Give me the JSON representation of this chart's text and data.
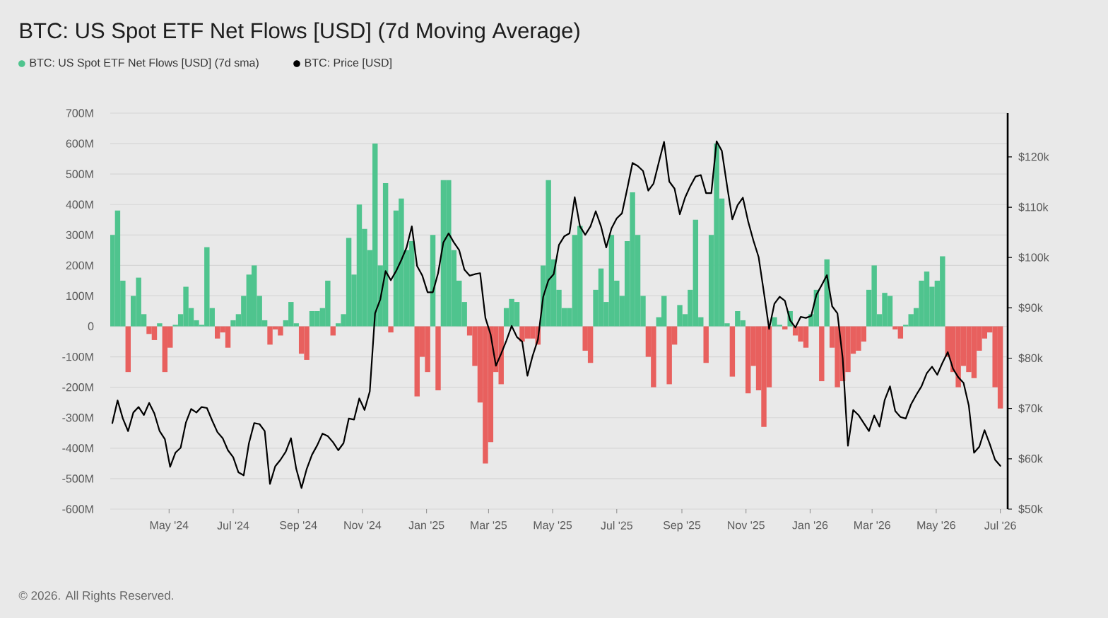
{
  "chart_data": {
    "type": "bar",
    "title": "BTC: US Spot ETF Net Flows [USD] (7d Moving Average)",
    "annotations": [
      "© 2026. All Rights Reserved."
    ],
    "legend": "top left",
    "grid": "y",
    "xlim": [
      "2024-03-06",
      "2026-07-08"
    ],
    "xticks": [
      {
        "value": "2024-05-01",
        "label": "May '24"
      },
      {
        "value": "2024-07-01",
        "label": "Jul '24"
      },
      {
        "value": "2024-09-01",
        "label": "Sep '24"
      },
      {
        "value": "2024-11-01",
        "label": "Nov '24"
      },
      {
        "value": "2025-01-01",
        "label": "Jan '25"
      },
      {
        "value": "2025-03-01",
        "label": "Mar '25"
      },
      {
        "value": "2025-05-01",
        "label": "May '25"
      },
      {
        "value": "2025-07-01",
        "label": "Jul '25"
      },
      {
        "value": "2025-09-01",
        "label": "Sep '25"
      },
      {
        "value": "2025-11-01",
        "label": "Nov '25"
      },
      {
        "value": "2026-01-01",
        "label": "Jan '26"
      },
      {
        "value": "2026-03-01",
        "label": "Mar '26"
      },
      {
        "value": "2026-05-01",
        "label": "May '26"
      },
      {
        "value": "2026-07-01",
        "label": "Jul '26"
      }
    ],
    "ylim": [
      -600000000,
      700000000
    ],
    "yticks": [
      {
        "value": -600000000,
        "label": "-600M"
      },
      {
        "value": -500000000,
        "label": "-500M"
      },
      {
        "value": -400000000,
        "label": "-400M"
      },
      {
        "value": -300000000,
        "label": "-300M"
      },
      {
        "value": -200000000,
        "label": "-200M"
      },
      {
        "value": -100000000,
        "label": "-100M"
      },
      0,
      {
        "value": 100000000,
        "label": "100M"
      },
      {
        "value": 200000000,
        "label": "200M"
      },
      {
        "value": 300000000,
        "label": "300M"
      },
      {
        "value": 400000000,
        "label": "400M"
      },
      {
        "value": 500000000,
        "label": "500M"
      },
      {
        "value": 600000000,
        "label": "600M"
      },
      {
        "value": 700000000,
        "label": "700M"
      }
    ],
    "y2lim": [
      50000,
      128700
    ],
    "y2ticks": [
      {
        "value": 50000,
        "label": "$50k"
      },
      {
        "value": 60000,
        "label": "$60k"
      },
      {
        "value": 70000,
        "label": "$70k"
      },
      {
        "value": 80000,
        "label": "$80k"
      },
      {
        "value": 90000,
        "label": "$90k"
      },
      {
        "value": 100000,
        "label": "$100k"
      },
      {
        "value": 110000,
        "label": "$110k"
      },
      {
        "value": 120000,
        "label": "$120k"
      }
    ],
    "x": [
      "2024-03-08",
      "2024-03-13",
      "2024-03-18",
      "2024-03-23",
      "2024-03-28",
      "2024-04-02",
      "2024-04-07",
      "2024-04-12",
      "2024-04-17",
      "2024-04-22",
      "2024-04-27",
      "2024-05-02",
      "2024-05-07",
      "2024-05-12",
      "2024-05-17",
      "2024-05-22",
      "2024-05-27",
      "2024-06-01",
      "2024-06-06",
      "2024-06-11",
      "2024-06-16",
      "2024-06-21",
      "2024-06-26",
      "2024-07-01",
      "2024-07-06",
      "2024-07-11",
      "2024-07-16",
      "2024-07-21",
      "2024-07-26",
      "2024-07-31",
      "2024-08-05",
      "2024-08-10",
      "2024-08-15",
      "2024-08-20",
      "2024-08-25",
      "2024-08-30",
      "2024-09-04",
      "2024-09-09",
      "2024-09-14",
      "2024-09-19",
      "2024-09-24",
      "2024-09-29",
      "2024-10-04",
      "2024-10-09",
      "2024-10-14",
      "2024-10-19",
      "2024-10-24",
      "2024-10-29",
      "2024-11-03",
      "2024-11-08",
      "2024-11-13",
      "2024-11-18",
      "2024-11-23",
      "2024-11-28",
      "2024-12-03",
      "2024-12-08",
      "2024-12-13",
      "2024-12-18",
      "2024-12-23",
      "2024-12-28",
      "2025-01-02",
      "2025-01-07",
      "2025-01-12",
      "2025-01-17",
      "2025-01-22",
      "2025-01-27",
      "2025-02-01",
      "2025-02-06",
      "2025-02-11",
      "2025-02-16",
      "2025-02-21",
      "2025-02-26",
      "2025-03-03",
      "2025-03-08",
      "2025-03-13",
      "2025-03-18",
      "2025-03-23",
      "2025-03-28",
      "2025-04-02",
      "2025-04-07",
      "2025-04-12",
      "2025-04-17",
      "2025-04-22",
      "2025-04-27",
      "2025-05-02",
      "2025-05-07",
      "2025-05-12",
      "2025-05-17",
      "2025-05-22",
      "2025-05-27",
      "2025-06-01",
      "2025-06-06",
      "2025-06-11",
      "2025-06-16",
      "2025-06-21",
      "2025-06-26",
      "2025-07-01",
      "2025-07-06",
      "2025-07-11",
      "2025-07-16",
      "2025-07-21",
      "2025-07-26",
      "2025-07-31",
      "2025-08-05",
      "2025-08-10",
      "2025-08-15",
      "2025-08-20",
      "2025-08-25",
      "2025-08-30",
      "2025-09-04",
      "2025-09-09",
      "2025-09-14",
      "2025-09-19",
      "2025-09-24",
      "2025-09-29",
      "2025-10-04",
      "2025-10-09",
      "2025-10-14",
      "2025-10-19",
      "2025-10-24",
      "2025-10-29",
      "2025-11-03",
      "2025-11-08",
      "2025-11-13",
      "2025-11-18",
      "2025-11-23",
      "2025-11-28",
      "2025-12-03",
      "2025-12-08",
      "2025-12-13",
      "2025-12-18",
      "2025-12-23",
      "2025-12-28",
      "2026-01-02",
      "2026-01-07",
      "2026-01-12",
      "2026-01-17",
      "2026-01-22",
      "2026-01-27",
      "2026-02-01",
      "2026-02-06",
      "2026-02-11",
      "2026-02-16",
      "2026-02-21",
      "2026-02-26",
      "2026-03-03",
      "2026-03-08",
      "2026-03-13",
      "2026-03-18",
      "2026-03-23",
      "2026-03-28",
      "2026-04-02",
      "2026-04-07",
      "2026-04-12",
      "2026-04-17",
      "2026-04-22",
      "2026-04-27",
      "2026-05-02",
      "2026-05-07",
      "2026-05-12",
      "2026-05-17",
      "2026-05-22",
      "2026-05-27",
      "2026-06-01",
      "2026-06-06",
      "2026-06-11",
      "2026-06-16",
      "2026-06-21",
      "2026-06-26",
      "2026-07-01"
    ],
    "series": [
      {
        "name": "BTC: US Spot ETF Net Flows [USD] (7d sma)",
        "values": [
          300000000,
          380000000,
          150000000,
          -150000000,
          100000000,
          160000000,
          40000000,
          -25000000,
          -45000000,
          10000000,
          -150000000,
          -70000000,
          5000000,
          40000000,
          130000000,
          60000000,
          20000000,
          5000000,
          260000000,
          60000000,
          -40000000,
          -20000000,
          -70000000,
          20000000,
          40000000,
          100000000,
          170000000,
          200000000,
          100000000,
          20000000,
          -60000000,
          -10000000,
          -30000000,
          20000000,
          80000000,
          10000000,
          -90000000,
          -110000000,
          50000000,
          50000000,
          60000000,
          150000000,
          -30000000,
          10000000,
          40000000,
          290000000,
          170000000,
          400000000,
          320000000,
          250000000,
          600000000,
          200000000,
          470000000,
          -20000000,
          380000000,
          420000000,
          250000000,
          280000000,
          -230000000,
          -100000000,
          -150000000,
          300000000,
          -210000000,
          480000000,
          480000000,
          250000000,
          150000000,
          80000000,
          -30000000,
          -130000000,
          -250000000,
          -450000000,
          -380000000,
          -150000000,
          -190000000,
          60000000,
          90000000,
          80000000,
          -50000000,
          -40000000,
          -40000000,
          -60000000,
          200000000,
          480000000,
          220000000,
          120000000,
          60000000,
          60000000,
          300000000,
          330000000,
          -80000000,
          -120000000,
          120000000,
          190000000,
          80000000,
          300000000,
          150000000,
          100000000,
          280000000,
          440000000,
          300000000,
          100000000,
          -100000000,
          -200000000,
          30000000,
          100000000,
          -190000000,
          -60000000,
          70000000,
          40000000,
          120000000,
          350000000,
          30000000,
          -120000000,
          300000000,
          600000000,
          420000000,
          10000000,
          -165000000,
          50000000,
          20000000,
          -220000000,
          -130000000,
          -210000000,
          -330000000,
          -200000000,
          30000000,
          5000000,
          -10000000,
          50000000,
          -30000000,
          -50000000,
          -70000000,
          40000000,
          120000000,
          -180000000,
          220000000,
          -70000000,
          -200000000,
          -180000000,
          -150000000,
          -90000000,
          -80000000,
          -50000000,
          120000000,
          200000000,
          40000000,
          110000000,
          100000000,
          -10000000,
          -40000000,
          5000000,
          40000000,
          60000000,
          150000000,
          180000000,
          130000000,
          150000000,
          230000000,
          -100000000,
          -150000000,
          -200000000,
          -130000000,
          -150000000,
          -170000000,
          -80000000,
          -40000000,
          -20000000,
          -200000000,
          -270000000
        ],
        "colors": [
          "#4fc48e",
          "#4fc48e",
          "#4fc48e",
          "#e8605e",
          "#4fc48e",
          "#4fc48e",
          "#4fc48e",
          "#e8605e",
          "#e8605e",
          "#4fc48e",
          "#e8605e",
          "#e8605e",
          "#4fc48e",
          "#4fc48e",
          "#4fc48e",
          "#4fc48e",
          "#4fc48e",
          "#4fc48e",
          "#4fc48e",
          "#4fc48e",
          "#e8605e",
          "#e8605e",
          "#e8605e",
          "#4fc48e",
          "#4fc48e",
          "#4fc48e",
          "#4fc48e",
          "#4fc48e",
          "#4fc48e",
          "#4fc48e",
          "#e8605e",
          "#e8605e",
          "#e8605e",
          "#4fc48e",
          "#4fc48e",
          "#4fc48e",
          "#e8605e",
          "#e8605e",
          "#4fc48e",
          "#4fc48e",
          "#4fc48e",
          "#4fc48e",
          "#e8605e",
          "#4fc48e",
          "#4fc48e",
          "#4fc48e",
          "#4fc48e",
          "#4fc48e",
          "#4fc48e",
          "#4fc48e",
          "#4fc48e",
          "#4fc48e",
          "#4fc48e",
          "#e8605e",
          "#4fc48e",
          "#4fc48e",
          "#4fc48e",
          "#4fc48e",
          "#e8605e",
          "#e8605e",
          "#e8605e",
          "#4fc48e",
          "#e8605e",
          "#4fc48e",
          "#4fc48e",
          "#4fc48e",
          "#4fc48e",
          "#4fc48e",
          "#e8605e",
          "#e8605e",
          "#e8605e",
          "#e8605e",
          "#e8605e",
          "#e8605e",
          "#e8605e",
          "#4fc48e",
          "#4fc48e",
          "#4fc48e",
          "#e8605e",
          "#e8605e",
          "#e8605e",
          "#e8605e",
          "#4fc48e",
          "#4fc48e",
          "#4fc48e",
          "#4fc48e",
          "#4fc48e",
          "#4fc48e",
          "#4fc48e",
          "#4fc48e",
          "#e8605e",
          "#e8605e",
          "#4fc48e",
          "#4fc48e",
          "#4fc48e",
          "#4fc48e",
          "#4fc48e",
          "#4fc48e",
          "#4fc48e",
          "#4fc48e",
          "#4fc48e",
          "#4fc48e",
          "#e8605e",
          "#e8605e",
          "#4fc48e",
          "#4fc48e",
          "#e8605e",
          "#e8605e",
          "#4fc48e",
          "#4fc48e",
          "#4fc48e",
          "#4fc48e",
          "#4fc48e",
          "#e8605e",
          "#4fc48e",
          "#4fc48e",
          "#4fc48e",
          "#4fc48e",
          "#e8605e",
          "#4fc48e",
          "#4fc48e",
          "#e8605e",
          "#e8605e",
          "#e8605e",
          "#e8605e",
          "#e8605e",
          "#4fc48e",
          "#4fc48e",
          "#e8605e",
          "#4fc48e",
          "#e8605e",
          "#e8605e",
          "#e8605e",
          "#4fc48e",
          "#4fc48e",
          "#e8605e",
          "#4fc48e",
          "#e8605e",
          "#e8605e",
          "#e8605e",
          "#e8605e",
          "#e8605e",
          "#e8605e",
          "#e8605e",
          "#4fc48e",
          "#4fc48e",
          "#4fc48e",
          "#4fc48e",
          "#4fc48e",
          "#e8605e",
          "#e8605e",
          "#4fc48e",
          "#4fc48e",
          "#4fc48e",
          "#4fc48e",
          "#4fc48e",
          "#4fc48e",
          "#4fc48e",
          "#4fc48e",
          "#e8605e",
          "#e8605e",
          "#e8605e",
          "#e8605e",
          "#e8605e",
          "#e8605e",
          "#e8605e",
          "#e8605e",
          "#e8605e",
          "#e8605e",
          "#e8605e"
        ]
      },
      {
        "name": "BTC: Price [USD]",
        "type": "line",
        "axis": "y2",
        "color": "#000000",
        "values": [
          67100,
          71600,
          68000,
          65500,
          69200,
          70300,
          68700,
          71100,
          69000,
          65500,
          63900,
          58400,
          61200,
          62200,
          67200,
          69900,
          69200,
          70300,
          70100,
          67600,
          65300,
          64100,
          61700,
          60300,
          57300,
          56700,
          63100,
          67100,
          66900,
          65500,
          55000,
          58500,
          59800,
          61400,
          64100,
          58000,
          54200,
          58000,
          60800,
          62700,
          65000,
          64500,
          63300,
          61700,
          63100,
          68000,
          67800,
          72000,
          69700,
          73400,
          88900,
          91700,
          97300,
          95500,
          97300,
          99500,
          102000,
          106200,
          98300,
          96400,
          93100,
          93100,
          96900,
          103000,
          104800,
          103000,
          101500,
          97600,
          96400,
          96700,
          96900,
          88000,
          84700,
          78500,
          80900,
          83500,
          86400,
          84200,
          83300,
          76500,
          80500,
          83700,
          92200,
          95500,
          96700,
          102500,
          104200,
          104800,
          112000,
          106200,
          104500,
          106200,
          109200,
          106200,
          102000,
          105800,
          107800,
          108800,
          113700,
          118800,
          118200,
          117200,
          113300,
          114700,
          118900,
          123000,
          115100,
          113700,
          108600,
          111900,
          114200,
          116100,
          116400,
          112800,
          112800,
          123100,
          121200,
          114200,
          107600,
          110400,
          111900,
          107200,
          103400,
          100100,
          93100,
          85800,
          90800,
          92200,
          91400,
          87500,
          86100,
          88200,
          88000,
          88400,
          92600,
          94500,
          96500,
          90300,
          88900,
          80000,
          62600,
          69700,
          68700,
          67100,
          65500,
          68600,
          66400,
          71700,
          74400,
          69500,
          68300,
          68000,
          70800,
          72700,
          74400,
          77000,
          78300,
          76700,
          79100,
          81200,
          77900,
          76200,
          75100,
          70600,
          61200,
          62400,
          65700,
          62900,
          59800,
          58600
        ]
      }
    ]
  }
}
